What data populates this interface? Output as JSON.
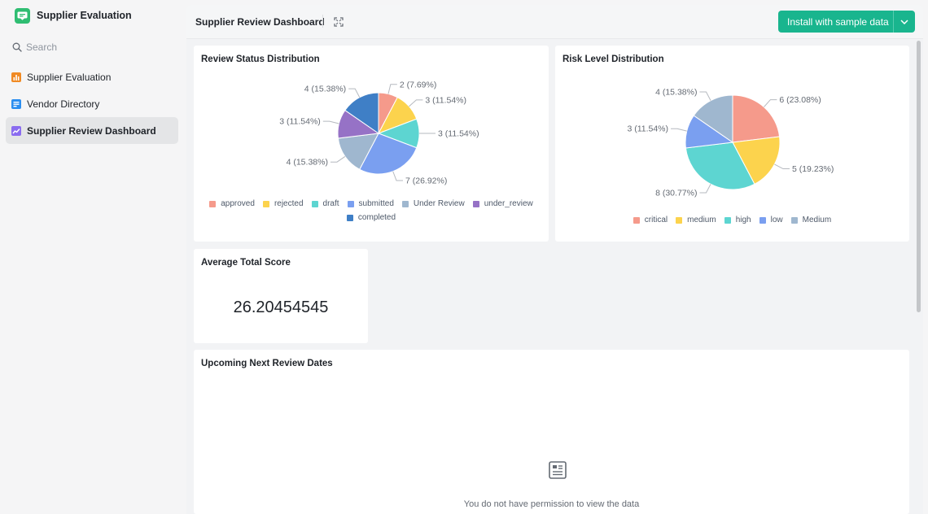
{
  "app": {
    "title": "Supplier Evaluation"
  },
  "search": {
    "placeholder": "Search"
  },
  "nav": {
    "items": [
      {
        "label": "Supplier Evaluation",
        "icon": "bar-chart-icon",
        "active": false
      },
      {
        "label": "Vendor Directory",
        "icon": "table-icon",
        "active": false
      },
      {
        "label": "Supplier Review Dashboard",
        "icon": "dashboard-icon",
        "active": true
      }
    ]
  },
  "dashboard": {
    "title": "Supplier Review Dashboard",
    "install_label": "Install with sample data"
  },
  "colors": {
    "accent": "#19b58e",
    "series": [
      "#f59a8b",
      "#fcd34d",
      "#5dd5d1",
      "#7a9ff0",
      "#9fb7cf",
      "#9672c6",
      "#3f7fc6"
    ]
  },
  "review_status": {
    "title": "Review Status Distribution",
    "chart_data": {
      "type": "pie",
      "title": "Review Status Distribution",
      "categories": [
        "approved",
        "rejected",
        "draft",
        "submitted",
        "Under Review",
        "under_review",
        "completed"
      ],
      "values": [
        2,
        3,
        3,
        7,
        4,
        3,
        4
      ],
      "slice_labels": [
        "2 (7.69%)",
        "3 (11.54%)",
        "3 (11.54%)",
        "7 (26.92%)",
        "4 (15.38%)",
        "3 (11.54%)",
        "4 (15.38%)"
      ],
      "colors": [
        "#f59a8b",
        "#fcd34d",
        "#5dd5d1",
        "#7a9ff0",
        "#9fb7cf",
        "#9672c6",
        "#3f7fc6"
      ],
      "legend_position": "bottom"
    }
  },
  "risk_level": {
    "title": "Risk Level Distribution",
    "chart_data": {
      "type": "pie",
      "title": "Risk Level Distribution",
      "categories": [
        "critical",
        "medium",
        "high",
        "low",
        "Medium"
      ],
      "values": [
        6,
        5,
        8,
        3,
        4
      ],
      "slice_labels": [
        "6 (23.08%)",
        "5 (19.23%)",
        "8 (30.77%)",
        "3 (11.54%)",
        "4 (15.38%)"
      ],
      "colors": [
        "#f59a8b",
        "#fcd34d",
        "#5dd5d1",
        "#7a9ff0",
        "#9fb7cf"
      ],
      "legend_position": "bottom"
    }
  },
  "avg_score": {
    "title": "Average Total Score",
    "value": "26.20454545"
  },
  "upcoming": {
    "title": "Upcoming Next Review Dates",
    "empty_text": "You do not have permission to view the data"
  }
}
